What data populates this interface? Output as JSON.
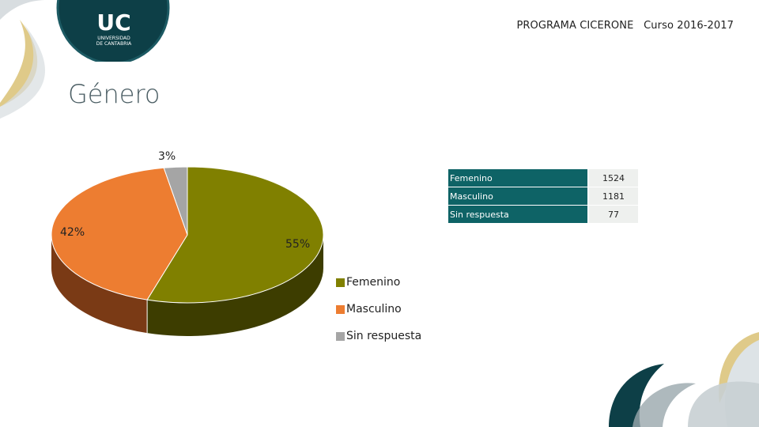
{
  "header": {
    "program": "PROGRAMA CICERONE",
    "course": "Curso 2016-2017"
  },
  "logo": {
    "mark": "UC",
    "line1": "UNIVERSIDAD",
    "line2": "DE CANTABRIA"
  },
  "slide": {
    "title": "Género"
  },
  "colors": {
    "femenino": "#808000",
    "femenino_side": "#3d3d00",
    "masculino": "#ed7d31",
    "masculino_side": "#7a3a15",
    "sin_respuesta": "#a5a5a5",
    "sin_respuesta_side": "#595959",
    "table_header": "#0e6366",
    "brand_dark": "#0d3f47"
  },
  "chart_data": {
    "type": "pie",
    "categories": [
      "Femenino",
      "Masculino",
      "Sin respuesta"
    ],
    "values": [
      1524,
      1181,
      77
    ],
    "percent_labels": [
      "55%",
      "42%",
      "3%"
    ],
    "legend_position": "bottom-right",
    "table": {
      "rows": [
        {
          "label": "Femenino",
          "value": "1524"
        },
        {
          "label": "Masculino",
          "value": "1181"
        },
        {
          "label": "Sin respuesta",
          "value": "77"
        }
      ]
    }
  }
}
